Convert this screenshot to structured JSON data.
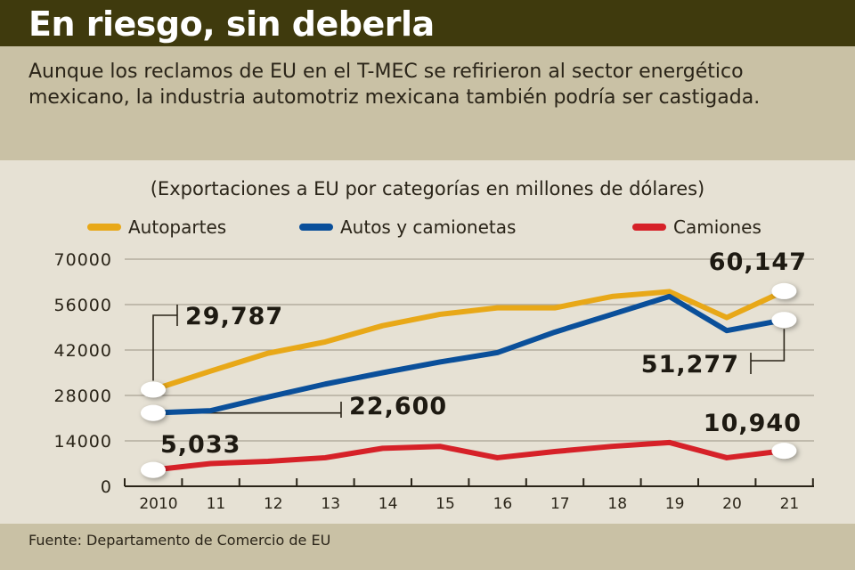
{
  "header": {
    "title": "En riesgo, sin deberla"
  },
  "intro": {
    "text": "Aunque los reclamos de EU en el T-MEC se refirieron al sector energético mexicano, la industria automotriz mexicana también podría ser castigada."
  },
  "footer": {
    "source": "Fuente: Departamento de Comercio de EU"
  },
  "colors": {
    "autopartes": "#e8a818",
    "autos": "#0a4f9a",
    "camiones": "#d62128",
    "grid": "#aaa294",
    "text": "#2a2418"
  },
  "chart_data": {
    "type": "line",
    "title": "(Exportaciones a EU por categorías en millones de dólares)",
    "xlabel": "",
    "ylabel": "",
    "x": [
      "2010",
      "11",
      "12",
      "13",
      "14",
      "15",
      "16",
      "17",
      "18",
      "19",
      "20",
      "21"
    ],
    "ylim": [
      0,
      70000
    ],
    "yticks": [
      0,
      14000,
      28000,
      42000,
      56000,
      70000
    ],
    "ytick_labels": [
      "0",
      "14000",
      "28000",
      "42000",
      "56000",
      "70000"
    ],
    "grid": true,
    "legend_position": "top",
    "series": [
      {
        "name": "Autopartes",
        "color": "#e8a818",
        "values": [
          29787,
          35500,
          41000,
          44500,
          49500,
          53000,
          55000,
          55000,
          58500,
          60000,
          52000,
          60147
        ]
      },
      {
        "name": "Autos y camionetas",
        "color": "#0a4f9a",
        "values": [
          22600,
          23300,
          27500,
          31500,
          35000,
          38300,
          41200,
          47500,
          53000,
          58500,
          48000,
          51277
        ]
      },
      {
        "name": "Camiones",
        "color": "#d62128",
        "values": [
          5033,
          7000,
          7700,
          8800,
          11700,
          12300,
          8800,
          10700,
          12300,
          13500,
          8800,
          10940
        ]
      }
    ],
    "annotations": [
      {
        "series": "Autopartes",
        "index": 0,
        "label": "29,787"
      },
      {
        "series": "Autos y camionetas",
        "index": 0,
        "label": "22,600"
      },
      {
        "series": "Camiones",
        "index": 0,
        "label": "5,033"
      },
      {
        "series": "Autopartes",
        "index": 11,
        "label": "60,147"
      },
      {
        "series": "Autos y camionetas",
        "index": 11,
        "label": "51,277"
      },
      {
        "series": "Camiones",
        "index": 11,
        "label": "10,940"
      }
    ]
  }
}
